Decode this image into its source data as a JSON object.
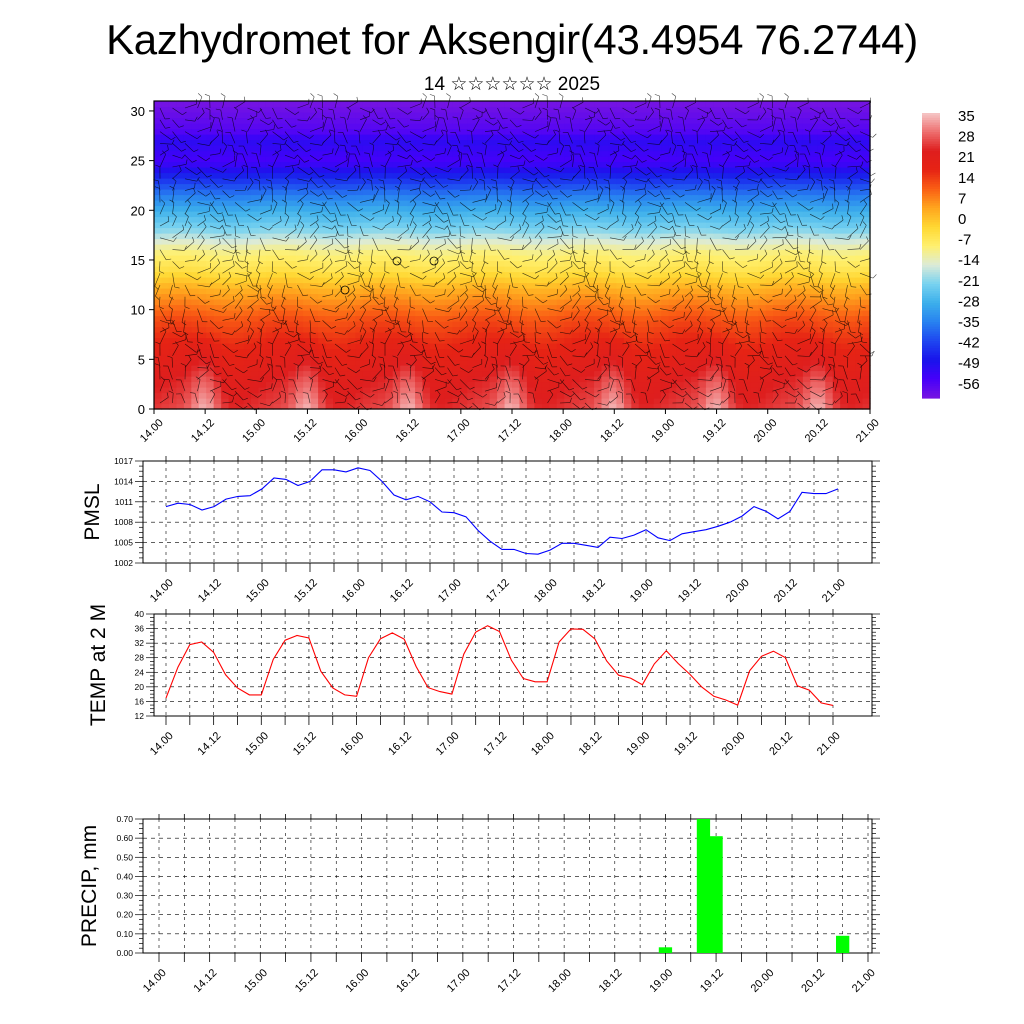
{
  "header": {
    "title": "Kazhydromet for Aksengir(43.4954 76.2744)",
    "subtitle": "14 ☆☆☆☆☆☆ 2025"
  },
  "time_ticks": [
    "14.00",
    "14.12",
    "15.00",
    "15.12",
    "16.00",
    "16.12",
    "17.00",
    "17.12",
    "18.00",
    "18.12",
    "19.00",
    "19.12",
    "20.00",
    "20.12",
    "21.00"
  ],
  "colors": {
    "pmsl_line": "#0000ff",
    "temp_line": "#ff0000",
    "precip_bar": "#00ff00",
    "grid": "#000000"
  },
  "chart_data": [
    {
      "type": "heatmap",
      "y_ticks": [
        "0",
        "5",
        "10",
        "15",
        "20",
        "25",
        "30"
      ],
      "ylim": [
        0,
        31
      ],
      "colorbar_labels": [
        "35",
        "28",
        "21",
        "14",
        "7",
        "0",
        "-7",
        "-14",
        "-21",
        "-28",
        "-35",
        "-42",
        "-49",
        "-56"
      ],
      "colorbar_range": [
        -63,
        42
      ],
      "overlay": "wind barbs"
    },
    {
      "type": "line",
      "ylabel": "PMSL",
      "ylim": [
        1002,
        1017
      ],
      "y_ticks": [
        "1002",
        "1005",
        "1008",
        "1011",
        "1014",
        "1017"
      ],
      "x": [
        0,
        3,
        6,
        9,
        12,
        15,
        18,
        21,
        24,
        27,
        30,
        33,
        36,
        39,
        42,
        45,
        48,
        51,
        54,
        57,
        60,
        63,
        66,
        69,
        72,
        75,
        78,
        81,
        84,
        87,
        90,
        93,
        96,
        99,
        102,
        105,
        108,
        111,
        114,
        117,
        120,
        123,
        126,
        129,
        132,
        135,
        138,
        141,
        144,
        147,
        150,
        153,
        156,
        159,
        162,
        165,
        168
      ],
      "values": [
        1010.3,
        1010.8,
        1010.6,
        1009.8,
        1010.3,
        1011.4,
        1011.8,
        1011.9,
        1012.9,
        1014.5,
        1014.3,
        1013.4,
        1014.0,
        1015.7,
        1015.7,
        1015.4,
        1016.0,
        1015.6,
        1014.0,
        1012.0,
        1011.3,
        1011.8,
        1011.0,
        1009.5,
        1009.4,
        1008.8,
        1006.8,
        1005.2,
        1004.0,
        1004.0,
        1003.4,
        1003.3,
        1003.9,
        1004.9,
        1004.9,
        1004.6,
        1004.3,
        1005.8,
        1005.6,
        1006.1,
        1006.9,
        1005.7,
        1005.3,
        1006.3,
        1006.6,
        1006.9,
        1007.4,
        1008.0,
        1008.9,
        1010.3,
        1009.6,
        1008.5,
        1009.6,
        1012.4,
        1012.2,
        1012.2,
        1012.9
      ]
    },
    {
      "type": "line",
      "ylabel": "TEMP at 2 M",
      "ylim": [
        12,
        40
      ],
      "y_ticks": [
        "12",
        "16",
        "20",
        "24",
        "28",
        "32",
        "36",
        "40"
      ],
      "x": [
        0,
        3,
        6,
        9,
        12,
        15,
        18,
        21,
        24,
        27,
        30,
        33,
        36,
        39,
        42,
        45,
        48,
        51,
        54,
        57,
        60,
        63,
        66,
        69,
        72,
        75,
        78,
        81,
        84,
        87,
        90,
        93,
        96,
        99,
        102,
        105,
        108,
        111,
        114,
        117,
        120,
        123,
        126,
        129,
        132,
        135,
        138,
        141,
        144,
        147,
        150,
        153,
        156,
        159,
        162,
        165,
        168
      ],
      "values": [
        16.9,
        25.4,
        31.6,
        32.3,
        29.5,
        23.3,
        19.7,
        17.8,
        17.8,
        27.5,
        32.8,
        34.1,
        33.4,
        24.3,
        19.7,
        17.8,
        17.4,
        28.0,
        33.2,
        34.8,
        33.1,
        25.6,
        19.8,
        18.7,
        18.0,
        29.0,
        35.0,
        36.8,
        35.2,
        27.3,
        22.3,
        21.4,
        21.4,
        32.3,
        35.9,
        35.8,
        33.2,
        27.1,
        23.2,
        22.4,
        20.6,
        26.3,
        29.9,
        26.4,
        23.4,
        19.9,
        17.4,
        16.4,
        15.0,
        24.4,
        28.4,
        29.8,
        28.0,
        20.3,
        19.1,
        15.6,
        14.9
      ]
    },
    {
      "type": "bar",
      "ylabel": "PRECIP, mm",
      "ylim": [
        0,
        0.7
      ],
      "y_ticks": [
        "0.00",
        "0.10",
        "0.20",
        "0.30",
        "0.40",
        "0.50",
        "0.60",
        "0.70"
      ],
      "x_hours": [
        120,
        129,
        132,
        162
      ],
      "values": [
        0.03,
        0.7,
        0.61,
        0.09
      ]
    }
  ]
}
